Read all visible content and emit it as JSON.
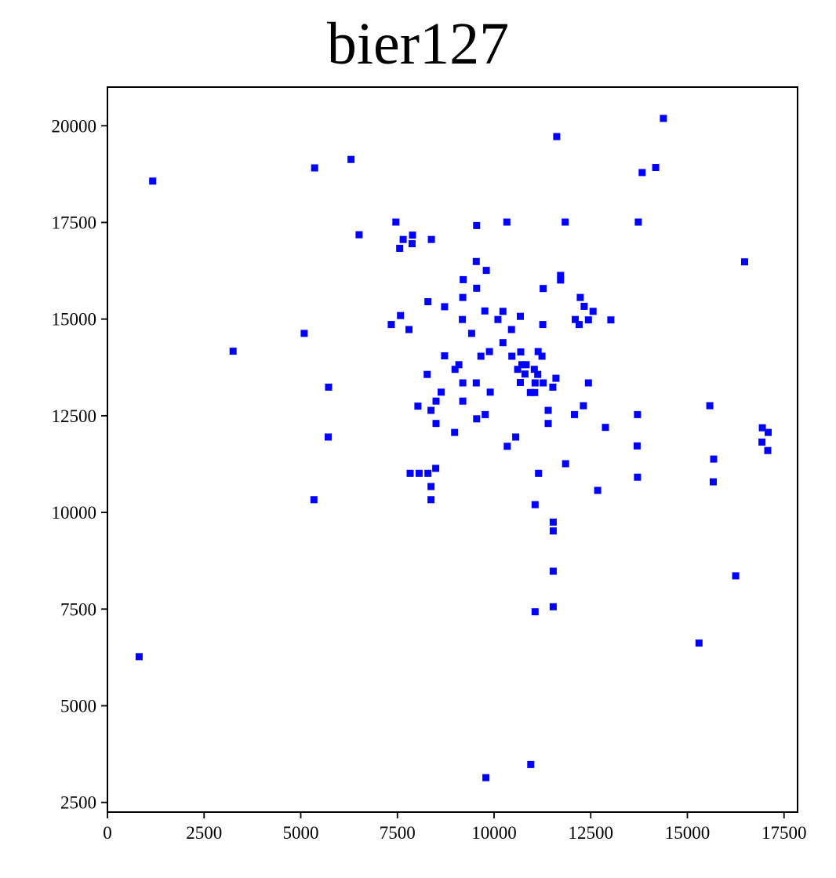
{
  "chart_data": {
    "type": "scatter",
    "title": "bier127",
    "xlabel": "",
    "ylabel": "",
    "xlim": [
      0,
      17850
    ],
    "ylim": [
      2250,
      21000
    ],
    "x_ticks": [
      0,
      2500,
      5000,
      7500,
      10000,
      12500,
      15000,
      17500
    ],
    "y_ticks": [
      2500,
      5000,
      7500,
      10000,
      12500,
      15000,
      17500,
      20000
    ],
    "grid": false,
    "legend": "none",
    "marker_color": "#0000ff",
    "marker": "square",
    "points": [
      [
        14380,
        20190
      ],
      [
        11620,
        19720
      ],
      [
        6300,
        19130
      ],
      [
        5360,
        18910
      ],
      [
        14180,
        18920
      ],
      [
        13830,
        18790
      ],
      [
        1170,
        18570
      ],
      [
        7460,
        17510
      ],
      [
        10330,
        17510
      ],
      [
        11840,
        17510
      ],
      [
        13730,
        17510
      ],
      [
        9550,
        17420
      ],
      [
        6510,
        17180
      ],
      [
        7890,
        17170
      ],
      [
        7650,
        17060
      ],
      [
        8380,
        17060
      ],
      [
        7880,
        16950
      ],
      [
        7560,
        16830
      ],
      [
        16480,
        16480
      ],
      [
        9540,
        16490
      ],
      [
        9800,
        16260
      ],
      [
        11720,
        16130
      ],
      [
        11720,
        16010
      ],
      [
        9200,
        16020
      ],
      [
        9550,
        15800
      ],
      [
        11270,
        15790
      ],
      [
        9190,
        15560
      ],
      [
        12230,
        15560
      ],
      [
        8290,
        15450
      ],
      [
        12330,
        15330
      ],
      [
        8720,
        15320
      ],
      [
        9760,
        15210
      ],
      [
        10230,
        15200
      ],
      [
        12560,
        15200
      ],
      [
        7580,
        15090
      ],
      [
        10680,
        15070
      ],
      [
        9180,
        14990
      ],
      [
        10100,
        14990
      ],
      [
        12100,
        14990
      ],
      [
        12440,
        14980
      ],
      [
        13020,
        14980
      ],
      [
        7340,
        14860
      ],
      [
        11260,
        14860
      ],
      [
        12200,
        14860
      ],
      [
        7800,
        14730
      ],
      [
        10450,
        14730
      ],
      [
        5090,
        14630
      ],
      [
        9420,
        14630
      ],
      [
        10230,
        14390
      ],
      [
        3250,
        14170
      ],
      [
        9880,
        14160
      ],
      [
        11140,
        14160
      ],
      [
        10690,
        14150
      ],
      [
        8720,
        14050
      ],
      [
        9660,
        14040
      ],
      [
        10460,
        14040
      ],
      [
        11240,
        14040
      ],
      [
        9090,
        13820
      ],
      [
        10720,
        13820
      ],
      [
        10830,
        13820
      ],
      [
        8990,
        13700
      ],
      [
        10610,
        13700
      ],
      [
        11040,
        13700
      ],
      [
        10800,
        13580
      ],
      [
        11130,
        13570
      ],
      [
        8270,
        13570
      ],
      [
        11600,
        13470
      ],
      [
        10680,
        13360
      ],
      [
        11060,
        13350
      ],
      [
        9190,
        13350
      ],
      [
        9540,
        13350
      ],
      [
        11270,
        13350
      ],
      [
        12440,
        13350
      ],
      [
        5720,
        13240
      ],
      [
        11520,
        13240
      ],
      [
        8630,
        13110
      ],
      [
        9900,
        13110
      ],
      [
        10940,
        13100
      ],
      [
        11050,
        13100
      ],
      [
        9190,
        12880
      ],
      [
        8500,
        12880
      ],
      [
        8030,
        12750
      ],
      [
        12310,
        12760
      ],
      [
        15580,
        12760
      ],
      [
        8370,
        12640
      ],
      [
        11400,
        12640
      ],
      [
        9770,
        12530
      ],
      [
        12080,
        12530
      ],
      [
        13710,
        12530
      ],
      [
        9550,
        12420
      ],
      [
        8500,
        12300
      ],
      [
        11400,
        12300
      ],
      [
        12880,
        12200
      ],
      [
        16940,
        12190
      ],
      [
        8980,
        12070
      ],
      [
        17090,
        12070
      ],
      [
        5710,
        11950
      ],
      [
        10560,
        11950
      ],
      [
        16930,
        11820
      ],
      [
        10340,
        11710
      ],
      [
        13700,
        11720
      ],
      [
        17080,
        11600
      ],
      [
        15680,
        11380
      ],
      [
        11850,
        11260
      ],
      [
        8490,
        11140
      ],
      [
        7830,
        11010
      ],
      [
        8060,
        11010
      ],
      [
        8290,
        11010
      ],
      [
        11150,
        11010
      ],
      [
        13710,
        10910
      ],
      [
        15670,
        10790
      ],
      [
        8370,
        10670
      ],
      [
        12680,
        10570
      ],
      [
        5340,
        10330
      ],
      [
        8370,
        10330
      ],
      [
        11060,
        10200
      ],
      [
        11530,
        9750
      ],
      [
        11530,
        9520
      ],
      [
        11530,
        8480
      ],
      [
        16250,
        8360
      ],
      [
        11530,
        7560
      ],
      [
        11060,
        7430
      ],
      [
        15300,
        6620
      ],
      [
        820,
        6270
      ],
      [
        10950,
        3480
      ],
      [
        9790,
        3140
      ]
    ]
  }
}
